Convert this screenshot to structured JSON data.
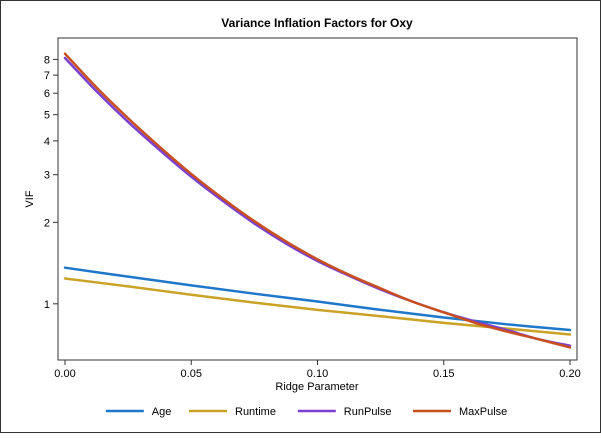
{
  "chart_data": {
    "type": "line",
    "title": "Variance Inflation Factors for Oxy",
    "xlabel": "Ridge Parameter",
    "ylabel": "VIF",
    "xlim": [
      0,
      0.2
    ],
    "ylim": [
      0.62,
      9.6
    ],
    "yscale": "log",
    "xticks": [
      0.0,
      0.05,
      0.1,
      0.15,
      0.2
    ],
    "xtick_labels": [
      "0.00",
      "0.05",
      "0.10",
      "0.15",
      "0.20"
    ],
    "yticks": [
      1,
      2,
      3,
      4,
      5,
      6,
      7,
      8
    ],
    "ytick_labels": [
      "1",
      "2",
      "3",
      "4",
      "5",
      "6",
      "7",
      "8"
    ],
    "grid": false,
    "legend_position": "bottom",
    "series": [
      {
        "name": "Age",
        "color": "#1f77c9",
        "x": [
          0.0,
          0.025,
          0.05,
          0.075,
          0.1,
          0.125,
          0.15,
          0.175,
          0.2
        ],
        "y": [
          1.36,
          1.26,
          1.17,
          1.09,
          1.02,
          0.95,
          0.89,
          0.84,
          0.8
        ]
      },
      {
        "name": "Runtime",
        "color": "#c9a227",
        "x": [
          0.0,
          0.025,
          0.05,
          0.075,
          0.1,
          0.125,
          0.15,
          0.175,
          0.2
        ],
        "y": [
          1.24,
          1.16,
          1.08,
          1.01,
          0.95,
          0.9,
          0.85,
          0.81,
          0.77
        ]
      },
      {
        "name": "RunPulse",
        "color": "#7b3fd1",
        "x": [
          0.0,
          0.0125,
          0.025,
          0.0375,
          0.05,
          0.0625,
          0.075,
          0.0875,
          0.1,
          0.1125,
          0.125,
          0.1375,
          0.15,
          0.1625,
          0.175,
          0.1875,
          0.2
        ],
        "y": [
          8.1,
          6.1,
          4.7,
          3.7,
          2.95,
          2.4,
          1.98,
          1.67,
          1.44,
          1.27,
          1.13,
          1.02,
          0.93,
          0.86,
          0.8,
          0.74,
          0.7
        ]
      },
      {
        "name": "MaxPulse",
        "color": "#c8501e",
        "x": [
          0.0,
          0.0125,
          0.025,
          0.0375,
          0.05,
          0.0625,
          0.075,
          0.0875,
          0.1,
          0.1125,
          0.125,
          0.1375,
          0.15,
          0.1625,
          0.175,
          0.1875,
          0.2
        ],
        "y": [
          8.4,
          6.3,
          4.85,
          3.8,
          3.02,
          2.45,
          2.02,
          1.7,
          1.46,
          1.28,
          1.14,
          1.02,
          0.93,
          0.85,
          0.79,
          0.74,
          0.69
        ]
      }
    ]
  }
}
